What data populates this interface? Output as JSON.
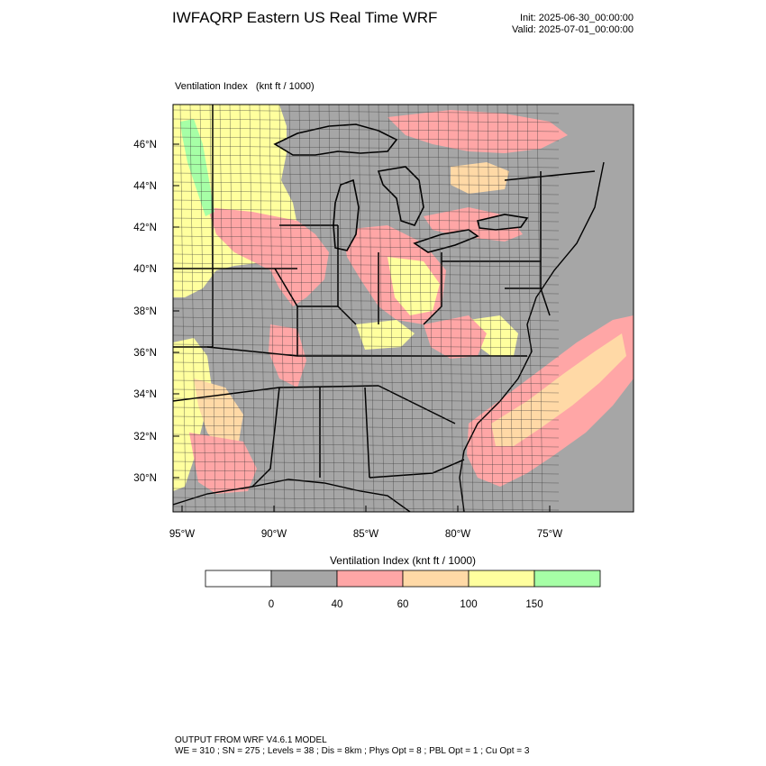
{
  "header": {
    "title": "IWFAQRP Eastern US Real Time WRF",
    "init": "Init: 2025-06-30_00:00:00",
    "valid": "Valid: 2025-07-01_00:00:00"
  },
  "field": {
    "name": "Ventilation Index",
    "units": "(knt ft / 1000)"
  },
  "map": {
    "lat_labels": [
      "46°N",
      "44°N",
      "42°N",
      "40°N",
      "38°N",
      "36°N",
      "34°N",
      "32°N",
      "30°N"
    ],
    "lon_labels": [
      "95°W",
      "90°W",
      "85°W",
      "80°W",
      "75°W"
    ],
    "land_color": "#a6a6a6",
    "border_color": "#000000"
  },
  "colorbar": {
    "title": "Ventilation Index  (knt ft / 1000)",
    "colors": [
      "#ffffff",
      "#a6a6a6",
      "#ffa6a6",
      "#ffd9a6",
      "#ffff9e",
      "#a6ffa6"
    ],
    "thresholds": [
      "0",
      "40",
      "60",
      "100",
      "150"
    ]
  },
  "footer": {
    "line1": "OUTPUT FROM WRF V4.6.1 MODEL",
    "line2": "WE = 310 ; SN = 275 ; Levels = 38 ; Dis = 8km ; Phys Opt = 8 ; PBL Opt = 1 ; Cu Opt = 3"
  }
}
